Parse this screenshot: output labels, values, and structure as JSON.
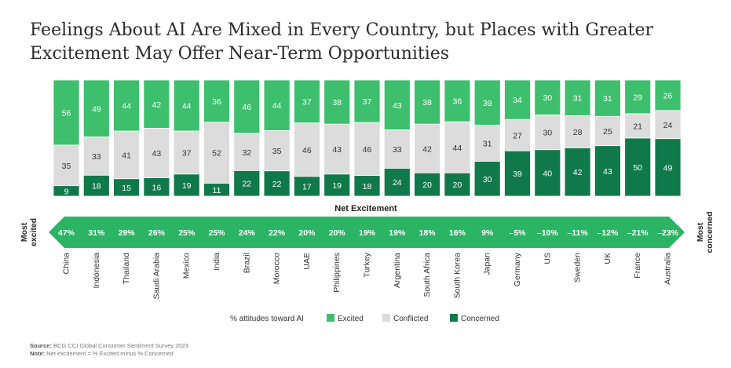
{
  "page": {
    "title_line1": "Feelings About AI Are Mixed in Every Country, but Places with Greater",
    "title_line2": "Excitement May Offer Near-Term Opportunities",
    "source_label": "Source:",
    "source_text": "BCG CCI Global Consumer Sentiment Survey 2023",
    "note_label": "Note:",
    "note_text": "Net excitement = % Excited minus % Concerned"
  },
  "colors": {
    "excited": "#3dbf6e",
    "conflicted": "#dcdcdc",
    "concerned": "#10794a",
    "arrow": "#2bb464"
  },
  "chart_data": {
    "type": "bar",
    "stacked": true,
    "normalized_to": 100,
    "categories": [
      "China",
      "Indonesia",
      "Thailand",
      "Saudi Arabia",
      "Mexico",
      "India",
      "Brazil",
      "Morocco",
      "UAE",
      "Philippines",
      "Turkey",
      "Argentina",
      "South Africa",
      "South Korea",
      "Japan",
      "Germany",
      "US",
      "Sweden",
      "UK",
      "France",
      "Australia"
    ],
    "series": [
      {
        "name": "Excited",
        "values": [
          56,
          49,
          44,
          42,
          44,
          36,
          46,
          44,
          37,
          38,
          37,
          43,
          38,
          36,
          39,
          34,
          30,
          31,
          31,
          29,
          26
        ]
      },
      {
        "name": "Conflicted",
        "values": [
          35,
          33,
          41,
          43,
          37,
          52,
          32,
          35,
          46,
          43,
          46,
          33,
          42,
          44,
          31,
          27,
          30,
          28,
          25,
          21,
          24
        ]
      },
      {
        "name": "Concerned",
        "values": [
          9,
          18,
          15,
          16,
          19,
          11,
          22,
          22,
          17,
          19,
          18,
          24,
          20,
          20,
          30,
          39,
          40,
          42,
          43,
          50,
          49
        ]
      }
    ],
    "net_excitement": {
      "label": "Net Excitement",
      "values": [
        "47%",
        "31%",
        "29%",
        "26%",
        "25%",
        "25%",
        "24%",
        "22%",
        "20%",
        "20%",
        "19%",
        "19%",
        "18%",
        "16%",
        "9%",
        "–5%",
        "–10%",
        "–11%",
        "–12%",
        "–21%",
        "–23%"
      ]
    },
    "left_label": [
      "Most",
      "excited"
    ],
    "right_label": [
      "Most",
      "concerned"
    ],
    "legend": {
      "title": "% attitudes toward AI",
      "entries": [
        "Excited",
        "Conflicted",
        "Concerned"
      ],
      "placement": "bottom"
    }
  }
}
